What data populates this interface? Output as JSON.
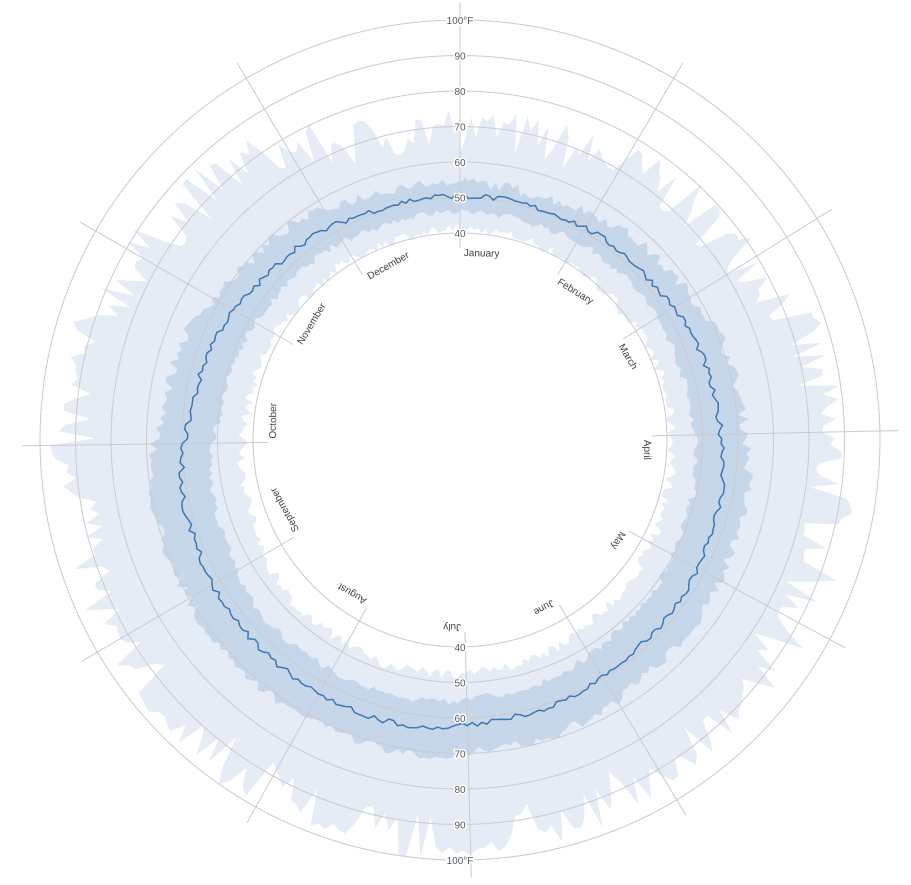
{
  "chart_data": {
    "type": "radial-area",
    "ring_ticks": [
      40,
      50,
      60,
      70,
      80,
      90,
      100
    ],
    "ring_tick_labels": [
      "40",
      "50",
      "60",
      "70",
      "80",
      "90",
      "100°F"
    ],
    "rlim": [
      28,
      100
    ],
    "months": [
      "January",
      "February",
      "March",
      "April",
      "May",
      "June",
      "July",
      "August",
      "September",
      "October",
      "November",
      "December"
    ],
    "month_day_counts": [
      31,
      28,
      31,
      30,
      31,
      30,
      31,
      31,
      30,
      31,
      30,
      31
    ],
    "series": [
      {
        "key": "record",
        "layer": "outer",
        "color": "#e6ecf5",
        "low_monthly": [
          41,
          40,
          41,
          42,
          44,
          47,
          48,
          47,
          44,
          42,
          41,
          41
        ],
        "high_monthly": [
          69,
          74,
          82,
          88,
          88,
          92,
          94,
          93,
          91,
          89,
          82,
          70
        ]
      },
      {
        "key": "normal",
        "layer": "inner",
        "color": "#c6d7ea",
        "low_monthly": [
          46,
          47,
          47,
          49,
          51,
          54,
          56,
          56,
          53,
          49,
          47,
          46
        ],
        "high_monthly": [
          54,
          57,
          61,
          64,
          66,
          69,
          71,
          71,
          70,
          65,
          59,
          55
        ]
      },
      {
        "key": "average",
        "layer": "line",
        "color": "#3f78b4",
        "monthly": [
          50.5,
          51.5,
          54,
          57,
          58.5,
          61,
          63.5,
          63,
          61.5,
          57,
          53,
          50.5
        ]
      }
    ]
  }
}
